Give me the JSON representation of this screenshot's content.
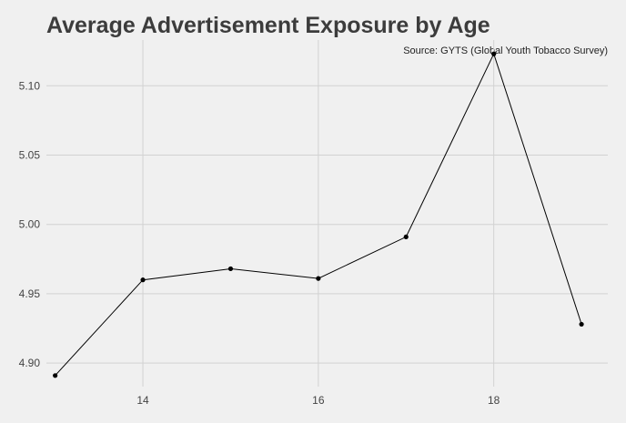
{
  "chart_data": {
    "type": "line",
    "title": "Average Advertisement Exposure by Age",
    "subtitle": "Source: GYTS (Global Youth Tobacco Survey)",
    "xlabel": "",
    "ylabel": "",
    "x": [
      13,
      14,
      15,
      16,
      17,
      18,
      19
    ],
    "series": [
      {
        "values": [
          4.891,
          4.96,
          4.968,
          4.961,
          4.991,
          5.123,
          4.928
        ]
      }
    ],
    "xlim": [
      12.9,
      19.3
    ],
    "ylim": [
      4.883,
      5.133
    ],
    "x_ticks": [
      14,
      16,
      18
    ],
    "y_ticks": [
      4.9,
      4.95,
      5.0,
      5.05,
      5.1
    ],
    "x_tick_labels": [
      "14",
      "16",
      "18"
    ],
    "y_tick_labels": [
      "4.90",
      "4.95",
      "5.00",
      "5.05",
      "5.10"
    ],
    "grid": true,
    "line_color": "#000000",
    "grid_color": "#d2d2d2"
  }
}
